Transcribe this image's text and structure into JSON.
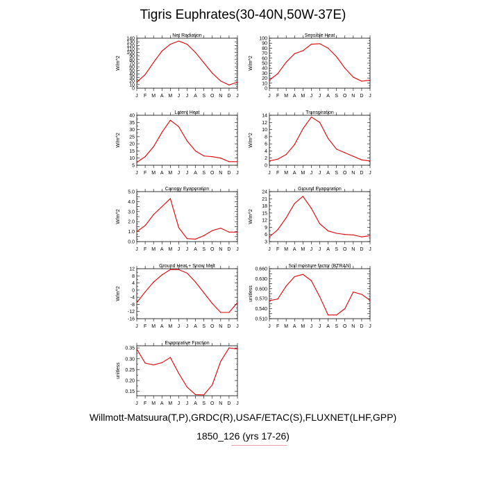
{
  "title": "Tigris Euphrates(30-40N,50W-37E)",
  "footer_line1": "Willmott-Matsuura(T,P),GRDC(R),USAF/ETAC(S),FLUXNET(LHF,GPP)",
  "footer_line2": "1850_126 (yrs 17-26)",
  "line_color": "#e00000",
  "chart_data": [
    {
      "type": "line",
      "title": "Net Radiation",
      "ylabel": "W/m^2",
      "categories": [
        "J",
        "F",
        "M",
        "A",
        "M",
        "J",
        "J",
        "A",
        "S",
        "O",
        "N",
        "D",
        "J"
      ],
      "ylim": [
        0,
        140
      ],
      "yticks": [
        0,
        10,
        20,
        30,
        40,
        50,
        60,
        70,
        80,
        90,
        100,
        110,
        120,
        130,
        140
      ],
      "yticklabels": [
        "0",
        "10",
        "20",
        "30",
        "40",
        "50",
        "60",
        "70",
        "80",
        "90",
        "100",
        "110",
        "120",
        "130",
        "140"
      ],
      "values": [
        17,
        38,
        72,
        104,
        123,
        132,
        123,
        100,
        71,
        42,
        20,
        9,
        17
      ]
    },
    {
      "type": "line",
      "title": "Sensible Heat",
      "ylabel": "W/m^2",
      "categories": [
        "J",
        "F",
        "M",
        "A",
        "M",
        "J",
        "J",
        "A",
        "S",
        "O",
        "N",
        "D",
        "J"
      ],
      "ylim": [
        0,
        100
      ],
      "yticks": [
        0,
        10,
        20,
        30,
        40,
        50,
        60,
        70,
        80,
        90,
        100
      ],
      "yticklabels": [
        "0",
        "10",
        "20",
        "30",
        "40",
        "50",
        "60",
        "70",
        "80",
        "90",
        "100"
      ],
      "values": [
        16,
        29,
        52,
        69,
        75,
        88,
        89,
        80,
        63,
        40,
        22,
        14,
        16
      ]
    },
    {
      "type": "line",
      "title": "Latent Heat",
      "ylabel": "W/m^2",
      "categories": [
        "J",
        "F",
        "M",
        "A",
        "M",
        "J",
        "J",
        "A",
        "S",
        "O",
        "N",
        "D",
        "J"
      ],
      "ylim": [
        5,
        40
      ],
      "yticks": [
        5,
        10,
        15,
        20,
        25,
        30,
        35,
        40
      ],
      "yticklabels": [
        "5",
        "10",
        "15",
        "20",
        "25",
        "30",
        "35",
        "40"
      ],
      "values": [
        7,
        11,
        18,
        28,
        36.5,
        32,
        22,
        15,
        11.5,
        11,
        10,
        7.5,
        7.5
      ]
    },
    {
      "type": "line",
      "title": "Transpiration",
      "ylabel": "W/m^2",
      "categories": [
        "J",
        "F",
        "M",
        "A",
        "M",
        "J",
        "J",
        "A",
        "S",
        "O",
        "N",
        "D",
        "J"
      ],
      "ylim": [
        0,
        14
      ],
      "yticks": [
        0,
        2,
        4,
        6,
        8,
        10,
        12,
        14
      ],
      "yticklabels": [
        "0",
        "2",
        "4",
        "6",
        "8",
        "10",
        "12",
        "14"
      ],
      "values": [
        1.2,
        1.7,
        3,
        5.8,
        10.2,
        13.5,
        12,
        7.5,
        4.5,
        3.5,
        2.5,
        1.5,
        1.2
      ]
    },
    {
      "type": "line",
      "title": "Canopy Evaporation",
      "ylabel": "W/m^2",
      "categories": [
        "J",
        "F",
        "M",
        "A",
        "M",
        "J",
        "J",
        "A",
        "S",
        "O",
        "N",
        "D",
        "J"
      ],
      "ylim": [
        0,
        5
      ],
      "yticks": [
        0,
        0.5,
        1,
        1.5,
        2,
        2.5,
        3,
        3.5,
        4,
        4.5,
        5
      ],
      "yticklabels": [
        "0.0",
        "",
        "1.0",
        "",
        "2.0",
        "",
        "3.0",
        "",
        "4.0",
        "",
        "5.0"
      ],
      "values": [
        1,
        1.6,
        2.7,
        3.5,
        4.3,
        1.4,
        0.3,
        0.25,
        0.6,
        1.1,
        1.35,
        0.95,
        0.95
      ]
    },
    {
      "type": "line",
      "title": "Ground Evaporation",
      "ylabel": "W/m^2",
      "categories": [
        "J",
        "F",
        "M",
        "A",
        "M",
        "J",
        "J",
        "A",
        "S",
        "O",
        "N",
        "D",
        "J"
      ],
      "ylim": [
        3,
        24
      ],
      "yticks": [
        3,
        6,
        9,
        12,
        15,
        18,
        21,
        24
      ],
      "yticklabels": [
        "3",
        "6",
        "9",
        "12",
        "15",
        "18",
        "21",
        "24"
      ],
      "values": [
        5,
        8,
        13,
        19,
        22,
        17,
        10.5,
        7.5,
        6.5,
        6,
        5.8,
        5,
        5.5
      ]
    },
    {
      "type": "line",
      "title": "Ground Heat + Snow Melt",
      "ylabel": "W/m^2",
      "categories": [
        "J",
        "F",
        "M",
        "A",
        "M",
        "J",
        "J",
        "A",
        "S",
        "O",
        "N",
        "D",
        "J"
      ],
      "ylim": [
        -16,
        12
      ],
      "yticks": [
        -16,
        -12,
        -8,
        -4,
        0,
        4,
        8,
        12
      ],
      "yticklabels": [
        "-16",
        "-12",
        "-8",
        "-4",
        "0",
        "4",
        "8",
        "12"
      ],
      "values": [
        -7,
        -1,
        4.5,
        8.5,
        11.5,
        11.5,
        9.5,
        4.5,
        -1.5,
        -7.5,
        -12.5,
        -12.5,
        -7
      ]
    },
    {
      "type": "line",
      "title": "Soil moisture factor (BTRAN)",
      "ylabel": "unitless",
      "categories": [
        "J",
        "F",
        "M",
        "A",
        "M",
        "J",
        "J",
        "A",
        "S",
        "O",
        "N",
        "D",
        "J"
      ],
      "ylim": [
        0.51,
        0.66
      ],
      "yticks": [
        0.51,
        0.525,
        0.54,
        0.555,
        0.57,
        0.585,
        0.6,
        0.615,
        0.63,
        0.645,
        0.66
      ],
      "yticklabels": [
        "0.510",
        "",
        "0.540",
        "",
        "0.570",
        "",
        "0.600",
        "",
        "0.630",
        "",
        "0.660"
      ],
      "values": [
        0.564,
        0.569,
        0.608,
        0.636,
        0.643,
        0.624,
        0.576,
        0.521,
        0.521,
        0.54,
        0.59,
        0.583,
        0.565
      ]
    },
    {
      "type": "line",
      "title": "Evaporative Fraction",
      "ylabel": "unitless",
      "categories": [
        "J",
        "F",
        "M",
        "A",
        "M",
        "J",
        "J",
        "A",
        "S",
        "O",
        "N",
        "D",
        "J"
      ],
      "ylim": [
        0.13,
        0.36
      ],
      "yticks": [
        0.15,
        0.2,
        0.25,
        0.3,
        0.35
      ],
      "yticklabels": [
        "0.15",
        "0.20",
        "0.25",
        "0.30",
        "0.35"
      ],
      "values": [
        0.345,
        0.28,
        0.272,
        0.282,
        0.306,
        0.233,
        0.17,
        0.135,
        0.134,
        0.18,
        0.288,
        0.35,
        0.345
      ]
    }
  ]
}
